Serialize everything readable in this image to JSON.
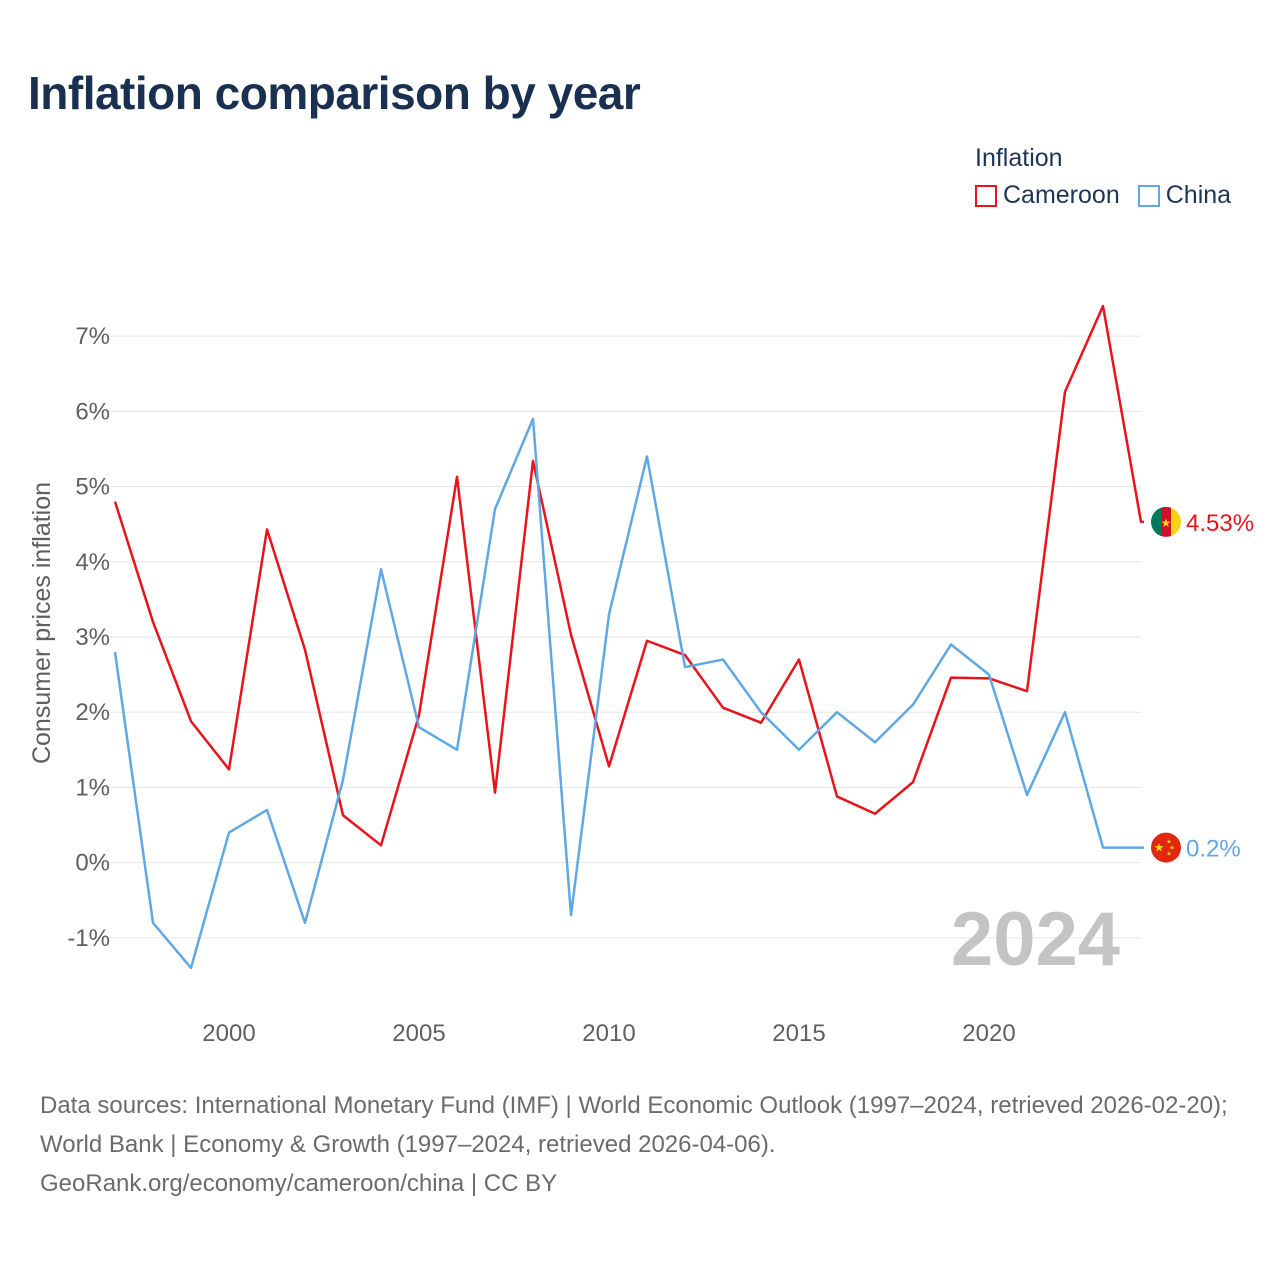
{
  "title": "Inflation comparison by year",
  "legend": {
    "title": "Inflation",
    "items": [
      {
        "label": "Cameroon",
        "color": "#e8141b"
      },
      {
        "label": "China",
        "color": "#60a8e4"
      }
    ]
  },
  "chart_data": {
    "type": "line",
    "title": "Inflation comparison by year",
    "xlabel": "",
    "ylabel": "Consumer prices inflation",
    "x": [
      1997,
      1998,
      1999,
      2000,
      2001,
      2002,
      2003,
      2004,
      2005,
      2006,
      2007,
      2008,
      2009,
      2010,
      2011,
      2012,
      2013,
      2014,
      2015,
      2016,
      2017,
      2018,
      2019,
      2020,
      2021,
      2022,
      2023,
      2024
    ],
    "series": [
      {
        "name": "Cameroon",
        "color": "#e8141b",
        "values": [
          4.8,
          3.2,
          1.88,
          1.24,
          4.43,
          2.83,
          0.63,
          0.23,
          1.96,
          5.13,
          0.93,
          5.34,
          3.03,
          1.28,
          2.95,
          2.76,
          2.06,
          1.86,
          2.7,
          0.88,
          0.65,
          1.07,
          2.46,
          2.45,
          2.28,
          6.26,
          7.4,
          4.53
        ]
      },
      {
        "name": "China",
        "color": "#60a8e4",
        "values": [
          2.8,
          -0.8,
          -1.4,
          0.4,
          0.7,
          -0.8,
          1.1,
          3.9,
          1.8,
          1.5,
          4.7,
          5.9,
          -0.7,
          3.3,
          5.4,
          2.6,
          2.7,
          2.0,
          1.5,
          2.0,
          1.6,
          2.1,
          2.9,
          2.5,
          0.9,
          2.0,
          0.2,
          0.2
        ]
      }
    ],
    "ylim": [
      -1.8,
      7.6
    ],
    "yticks": [
      -1,
      0,
      1,
      2,
      3,
      4,
      5,
      6,
      7
    ],
    "ytick_labels": [
      "-1%",
      "0%",
      "1%",
      "2%",
      "3%",
      "4%",
      "5%",
      "6%",
      "7%"
    ],
    "xticks": [
      2000,
      2005,
      2010,
      2015,
      2020
    ],
    "xtick_labels": [
      "2000",
      "2005",
      "2010",
      "2015",
      "2020"
    ],
    "end_labels": [
      "4.53%",
      "0.2%"
    ],
    "year_watermark": "2024",
    "grid": true,
    "legend_position": "top-right"
  },
  "footer": {
    "sources": "Data sources: International Monetary Fund (IMF) | World Economic Outlook (1997–2024, retrieved 2026-02-20); World Bank | Economy & Growth (1997–2024, retrieved 2026-04-06).",
    "credit": "GeoRank.org/economy/cameroon/china | CC BY"
  }
}
